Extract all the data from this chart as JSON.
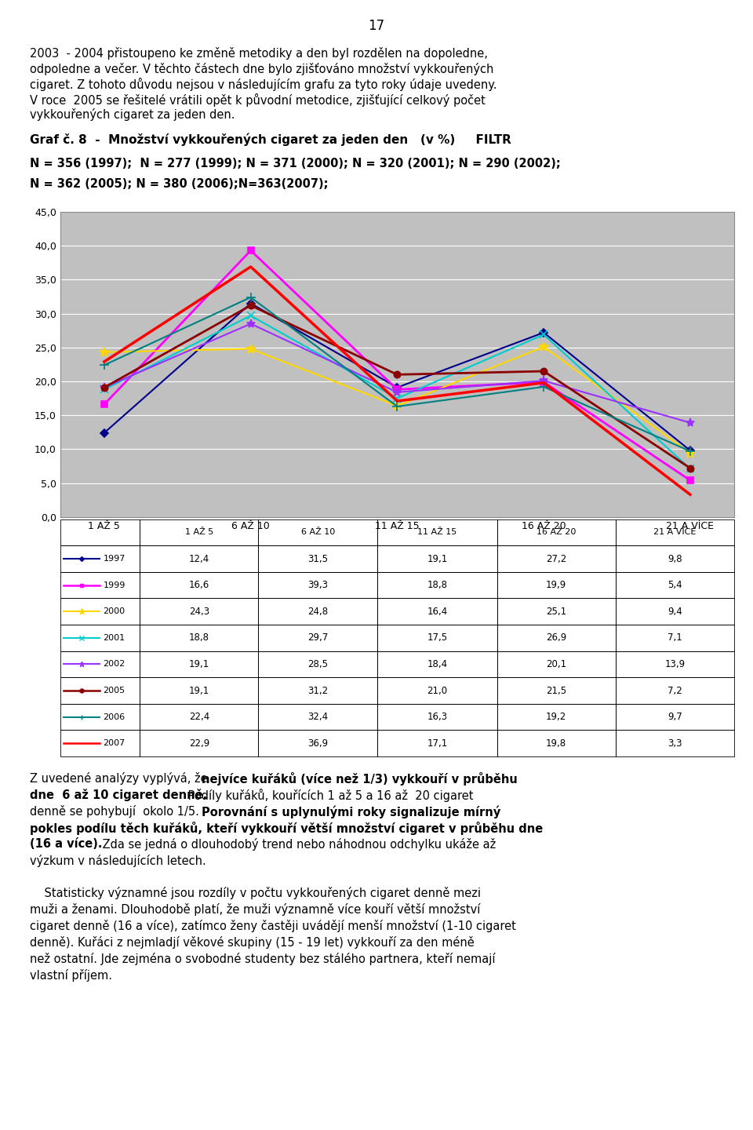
{
  "page_number": "17",
  "categories": [
    "1 AŽ 5",
    "6 AŽ 10",
    "11 AŽ 15",
    "16 AŽ 20",
    "21 A VÍCE"
  ],
  "series": [
    {
      "year": "1997",
      "values": [
        12.4,
        31.5,
        19.1,
        27.2,
        9.8
      ],
      "color": "#00008B",
      "marker": "D",
      "linewidth": 1.5,
      "markersize": 5
    },
    {
      "year": "1999",
      "values": [
        16.6,
        39.3,
        18.8,
        19.9,
        5.4
      ],
      "color": "#FF00FF",
      "marker": "s",
      "linewidth": 2.0,
      "markersize": 6
    },
    {
      "year": "2000",
      "values": [
        24.3,
        24.8,
        16.4,
        25.1,
        9.4
      ],
      "color": "#FFD700",
      "marker": "*",
      "linewidth": 1.5,
      "markersize": 9
    },
    {
      "year": "2001",
      "values": [
        18.8,
        29.7,
        17.5,
        26.9,
        7.1
      ],
      "color": "#00CCCC",
      "marker": "x",
      "linewidth": 1.5,
      "markersize": 7
    },
    {
      "year": "2002",
      "values": [
        19.1,
        28.5,
        18.4,
        20.1,
        13.9
      ],
      "color": "#9B30FF",
      "marker": "*",
      "linewidth": 1.5,
      "markersize": 8
    },
    {
      "year": "2005",
      "values": [
        19.1,
        31.2,
        21.0,
        21.5,
        7.2
      ],
      "color": "#8B0000",
      "marker": "o",
      "linewidth": 2.0,
      "markersize": 6
    },
    {
      "year": "2006",
      "values": [
        22.4,
        32.4,
        16.3,
        19.2,
        9.7
      ],
      "color": "#008080",
      "marker": "+",
      "linewidth": 1.5,
      "markersize": 8
    },
    {
      "year": "2007",
      "values": [
        22.9,
        36.9,
        17.1,
        19.8,
        3.3
      ],
      "color": "#FF0000",
      "marker": null,
      "linewidth": 2.5,
      "markersize": 0
    }
  ],
  "ylim": [
    0.0,
    45.0
  ],
  "yticks": [
    0.0,
    5.0,
    10.0,
    15.0,
    20.0,
    25.0,
    30.0,
    35.0,
    40.0,
    45.0
  ],
  "chart_bg": "#C0C0C0",
  "table_data": [
    [
      "",
      "1 AŽ 5",
      "6 AŽ 10",
      "11 AŽ 15",
      "16 AŽ 20",
      "21 A VÍCE"
    ],
    [
      "1997",
      "12,4",
      "31,5",
      "19,1",
      "27,2",
      "9,8"
    ],
    [
      "1999",
      "16,6",
      "39,3",
      "18,8",
      "19,9",
      "5,4"
    ],
    [
      "2000",
      "24,3",
      "24,8",
      "16,4",
      "25,1",
      "9,4"
    ],
    [
      "2001",
      "18,8",
      "29,7",
      "17,5",
      "26,9",
      "7,1"
    ],
    [
      "2002",
      "19,1",
      "28,5",
      "18,4",
      "20,1",
      "13,9"
    ],
    [
      "2005",
      "19,1",
      "31,2",
      "21,0",
      "21,5",
      "7,2"
    ],
    [
      "2006",
      "22,4",
      "32,4",
      "16,3",
      "19,2",
      "9,7"
    ],
    [
      "2007",
      "22,9",
      "36,9",
      "17,1",
      "19,8",
      "3,3"
    ]
  ],
  "intro_lines": [
    "2003  - 2004 přistoupeno ke změně metodiky a den byl rozdělen na dopoledne,",
    "odpoledne a večer. V těchto částech dne bylo zjišťováno množství vykkouřených",
    "cigaret. Z tohoto důvodu nejsou v následujícím grafu za tyto roky údaje uvedeny.",
    "V roce  2005 se řešitelé vrátili opět k původní metodice, zjišťující celkový počet",
    "vykkouřených cigaret za jeden den."
  ],
  "chart_title": "Graf č. 8  -  Množství vykkouřených cigaret za jeden den   (v %)     FILTR",
  "ns_line1": "N = 356 (1997);  N = 277 (1999); N = 371 (2000); N = 320 (2001); N = 290 (2002);",
  "ns_line2": "N = 362 (2005); N = 380 (2006);N=363(2007);",
  "bottom_lines": [
    [
      [
        "Z uvedené analýzy vyplývá, že ",
        false
      ],
      [
        "nejvíce kuřáků (více než 1/3) vykkouří v průběhu",
        true
      ]
    ],
    [
      [
        "dne  6 až 10 cigaret denně.",
        true
      ],
      [
        " Podíly kuřáků, kouřících 1 až 5 a 16 až  20 cigaret",
        false
      ]
    ],
    [
      [
        "denně se pohybují  okolo 1/5. ",
        false
      ],
      [
        "Porovnání s uplynulými roky signalizuje mírný",
        true
      ]
    ],
    [
      [
        "pokles podílu těch kuřáků, kteří vykkouří větší množství cigaret v průběhu dne",
        true
      ]
    ],
    [
      [
        "(16 a více).",
        true
      ],
      [
        " Zda se jedná o dlouhodobý trend nebo náhodnou odchylku ukáže až",
        false
      ]
    ],
    [
      [
        "výzkum v následujících letech.",
        false
      ]
    ],
    [
      [
        "",
        false
      ]
    ],
    [
      [
        "    Statisticky významné jsou rozdíly v počtu vykkouřených cigaret denně mezi",
        false
      ]
    ],
    [
      [
        "muži a ženami. Dlouhodobě platí, že muži významně více kouří větší množství",
        false
      ]
    ],
    [
      [
        "cigaret denně (16 a více), zatímco ženy častěji uvádějí menší množství (1-10 cigaret",
        false
      ]
    ],
    [
      [
        "denně). Kuřáci z nejmladjí věkové skupiny (15 - 19 let) vykkouří za den méně",
        false
      ]
    ],
    [
      [
        "než ostatní. Jde zejména o svobodné studenty bez stálého partnera, kteří nemají",
        false
      ]
    ],
    [
      [
        "vlastní příjem.",
        false
      ]
    ]
  ]
}
